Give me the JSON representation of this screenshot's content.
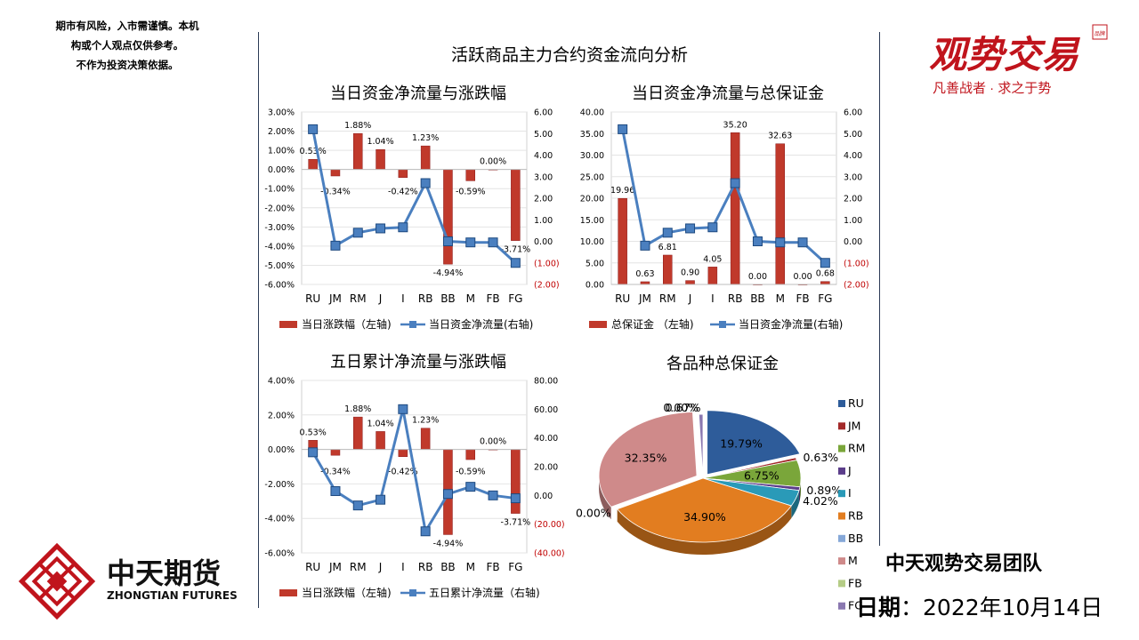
{
  "disclaimer": [
    "期市有风险，入市需谨慎。本机",
    "构或个人观点仅供参考。",
    "不作为投资决策依据。"
  ],
  "main_title": "活跃商品主力合约资金流向分析",
  "brand_right": {
    "name": "观势交易",
    "badge": "品牌",
    "slogan": "凡善战者 · 求之于势",
    "color": "#c0141c"
  },
  "brand_left": {
    "cn": "中天期货",
    "en": "ZHONGTIAN FUTURES",
    "color": "#c0141c"
  },
  "team": "中天观势交易团队",
  "date_label": "日期",
  "date_colon": "：",
  "date_value": "2022年10月14日",
  "colors": {
    "bar": "#c0392b",
    "line": "#4a7fbf",
    "neg_axis": "#c00000"
  },
  "chart_data": [
    {
      "type": "bar",
      "title": "当日资金净流量与涨跌幅",
      "categories": [
        "RU",
        "JM",
        "RM",
        "J",
        "I",
        "RB",
        "BB",
        "M",
        "FB",
        "FG"
      ],
      "series": [
        {
          "name": "当日涨跌幅（左轴)",
          "kind": "bar",
          "axis": "left",
          "values": [
            0.53,
            -0.34,
            1.88,
            1.04,
            -0.42,
            1.23,
            -4.94,
            -0.59,
            0.0,
            -3.71
          ],
          "labels": [
            "0.53%",
            "-0.34%",
            "1.88%",
            "1.04%",
            "-0.42%",
            "1.23%",
            "-4.94%",
            "-0.59%",
            "0.00%",
            "-3.71%"
          ]
        },
        {
          "name": "当日资金净流量(右轴)",
          "kind": "line",
          "axis": "right",
          "values": [
            5.2,
            -0.2,
            0.4,
            0.6,
            0.65,
            2.7,
            0.0,
            -0.05,
            -0.05,
            -1.0
          ]
        }
      ],
      "left_axis": {
        "min": -6,
        "max": 3,
        "step": 1,
        "ticks": [
          "3.00%",
          "2.00%",
          "1.00%",
          "0.00%",
          "-1.00%",
          "-2.00%",
          "-3.00%",
          "-4.00%",
          "-5.00%",
          "-6.00%"
        ]
      },
      "right_axis": {
        "min": -2,
        "max": 6,
        "step": 1,
        "ticks": [
          "6.00",
          "5.00",
          "4.00",
          "3.00",
          "2.00",
          "1.00",
          "0.00",
          "(1.00)",
          "(2.00)"
        ]
      }
    },
    {
      "type": "bar",
      "title": "当日资金净流量与总保证金",
      "categories": [
        "RU",
        "JM",
        "RM",
        "J",
        "I",
        "RB",
        "BB",
        "M",
        "FB",
        "FG"
      ],
      "series": [
        {
          "name": "总保证金 （左轴)",
          "kind": "bar",
          "axis": "left",
          "values": [
            19.96,
            0.63,
            6.81,
            0.9,
            4.05,
            35.2,
            0.0,
            32.63,
            0.0,
            0.68
          ],
          "labels": [
            "19.96",
            "0.63",
            "6.81",
            "0.90",
            "4.05",
            "35.20",
            "0.00",
            "32.63",
            "0.00",
            "0.68"
          ]
        },
        {
          "name": "当日资金净流量(右轴)",
          "kind": "line",
          "axis": "right",
          "values": [
            5.2,
            -0.2,
            0.4,
            0.6,
            0.65,
            2.7,
            0.0,
            -0.05,
            -0.05,
            -1.0
          ]
        }
      ],
      "left_axis": {
        "min": 0,
        "max": 40,
        "step": 5,
        "ticks": [
          "40.00",
          "35.00",
          "30.00",
          "25.00",
          "20.00",
          "15.00",
          "10.00",
          "5.00",
          "0.00"
        ]
      },
      "right_axis": {
        "min": -2,
        "max": 6,
        "step": 1,
        "ticks": [
          "6.00",
          "5.00",
          "4.00",
          "3.00",
          "2.00",
          "1.00",
          "0.00",
          "(1.00)",
          "(2.00)"
        ]
      }
    },
    {
      "type": "bar",
      "title": "五日累计净流量与涨跌幅",
      "categories": [
        "RU",
        "JM",
        "RM",
        "J",
        "I",
        "RB",
        "BB",
        "M",
        "FB",
        "FG"
      ],
      "series": [
        {
          "name": "当日涨跌幅（左轴)",
          "kind": "bar",
          "axis": "left",
          "values": [
            0.53,
            -0.34,
            1.88,
            1.04,
            -0.42,
            1.23,
            -4.94,
            -0.59,
            0.0,
            -3.71
          ],
          "labels": [
            "0.53%",
            "-0.34%",
            "1.88%",
            "1.04%",
            "-0.42%",
            "1.23%",
            "-4.94%",
            "-0.59%",
            "0.00%",
            "-3.71%"
          ]
        },
        {
          "name": "五日累计净流量（右轴)",
          "kind": "line",
          "axis": "right",
          "values": [
            30,
            3,
            -7,
            -3,
            60,
            -25,
            1,
            6,
            0,
            -2
          ]
        }
      ],
      "left_axis": {
        "min": -6,
        "max": 4,
        "step": 2,
        "ticks": [
          "4.00%",
          "2.00%",
          "0.00%",
          "-2.00%",
          "-4.00%",
          "-6.00%"
        ]
      },
      "right_axis": {
        "min": -40,
        "max": 80,
        "step": 20,
        "ticks": [
          "80.00",
          "60.00",
          "40.00",
          "20.00",
          "0.00",
          "(20.00)",
          "(40.00)"
        ]
      }
    },
    {
      "type": "pie",
      "title": "各品种总保证金",
      "categories": [
        "RU",
        "JM",
        "RM",
        "J",
        "I",
        "RB",
        "BB",
        "M",
        "FB",
        "FG"
      ],
      "values": [
        19.79,
        0.63,
        6.75,
        0.89,
        4.02,
        34.9,
        0.0,
        32.35,
        0.0,
        0.67
      ],
      "labels": [
        "19.79%",
        "0.63%",
        "6.75%",
        "0.89%",
        "4.02%",
        "34.90%",
        "0.00%",
        "32.35%",
        "0.00%",
        "0.67%"
      ],
      "colors": [
        "#2e5c9a",
        "#a32a2a",
        "#7aa63a",
        "#5b3d8a",
        "#2a9ab8",
        "#e27d20",
        "#86a8d8",
        "#cf8a8a",
        "#b5cc86",
        "#8a78b0"
      ],
      "legend_position": "right"
    }
  ]
}
